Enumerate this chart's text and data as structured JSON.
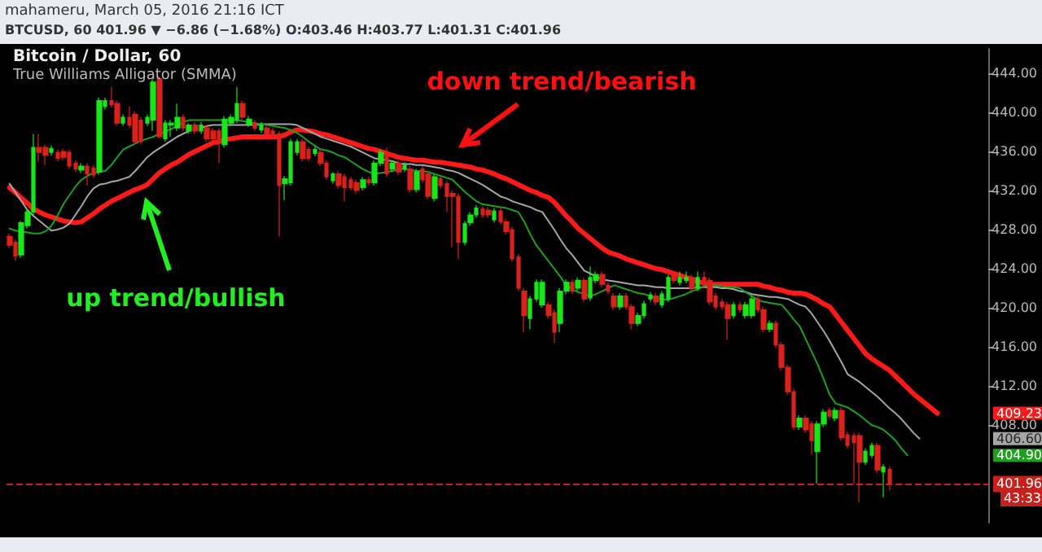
{
  "chart_data": {
    "type": "candlestick",
    "title": "Bitcoin / Dollar, 60",
    "subtitle": "True Williams Alligator (SMMA)",
    "annotations": [
      "mahameru, March 05, 2016 21:16 ICT",
      "BTCUSD, 60 401.96 ▼ −6.86 (−1.68%) O:403.46 H:403.77 L:401.31 C:401.96",
      "down trend/bearish",
      "up trend/bullish",
      "409.23",
      "406.60",
      "404.90",
      "43:33"
    ],
    "categories": [
      null,
      null,
      null,
      null,
      null,
      null,
      null,
      null,
      null,
      null,
      null,
      null,
      null,
      null,
      null,
      null,
      null,
      null,
      null,
      null,
      null,
      null,
      null,
      null,
      null,
      null,
      null,
      null,
      null,
      null,
      null,
      null,
      null,
      null,
      null,
      null,
      null,
      null,
      null,
      null,
      null,
      null,
      null,
      null,
      null,
      null,
      null,
      null,
      null,
      null,
      null,
      null,
      null,
      null,
      null,
      null,
      null,
      null,
      null,
      null,
      null,
      null,
      null,
      null,
      null,
      null,
      null,
      null,
      null,
      null,
      null,
      null,
      null,
      null,
      null,
      null,
      null,
      null,
      null,
      null,
      null,
      null,
      null,
      null,
      null,
      null,
      null,
      null,
      null,
      null,
      null,
      null,
      null,
      null,
      null,
      null,
      null,
      null,
      null,
      null,
      null,
      null,
      null,
      null,
      null,
      null,
      null,
      null,
      null,
      null,
      null,
      null,
      null,
      null,
      null,
      null,
      null,
      null,
      null,
      null,
      null,
      null,
      null,
      null,
      null,
      null,
      null,
      null,
      null,
      null,
      null,
      null,
      null,
      null,
      null,
      null,
      null,
      null,
      null,
      null,
      null,
      null,
      null,
      null,
      null,
      null,
      null,
      null,
      null,
      null,
      null,
      null,
      null,
      null,
      null,
      null,
      null,
      null,
      null,
      null,
      null,
      null,
      null,
      null
    ],
    "colors": [
      "#d9221c",
      "#d9221c",
      "#19e619",
      "#19e619",
      "#19e619",
      "#d9221c",
      "#d9221c",
      "#19e619",
      "#d9221c",
      "#d9221c",
      "#d9221c",
      "#d9221c",
      "#19e619",
      "#d9221c",
      "#d9221c",
      "#19e619",
      "#19e619",
      "#d9221c",
      "#d9221c",
      "#19e619",
      "#d9221c",
      "#d9221c",
      "#d9221c",
      "#19e619",
      "#19e619",
      "#d9221c",
      "#19e619",
      "#19e619",
      "#19e619",
      "#d9221c",
      "#19e619",
      "#d9221c",
      "#19e619",
      "#d9221c",
      "#d9221c",
      "#d9221c",
      "#19e619",
      "#19e619",
      "#19e619",
      "#d9221c",
      "#19e619",
      "#d9221c",
      "#19e619",
      "#d9221c",
      "#d9221c",
      "#d9221c",
      "#19e619",
      "#19e619",
      "#19e619",
      "#d9221c",
      "#d9221c",
      "#19e619",
      "#d9221c",
      "#d9221c",
      "#19e619",
      "#d9221c",
      "#d9221c",
      "#d9221c",
      "#d9221c",
      "#19e619",
      "#d9221c",
      "#19e619",
      "#19e619",
      "#d9221c",
      "#19e619",
      "#d9221c",
      "#19e619",
      "#d9221c",
      "#19e619",
      "#d9221c",
      "#d9221c",
      "#19e619",
      "#d9221c",
      "#d9221c",
      "#d9221c",
      "#d9221c",
      "#19e619",
      "#19e619",
      "#19e619",
      "#d9221c",
      "#d9221c",
      "#19e619",
      "#d9221c",
      "#d9221c",
      "#d9221c",
      "#d9221c",
      "#d9221c",
      "#19e619",
      "#19e619",
      "#19e619",
      "#d9221c",
      "#d9221c",
      "#19e619",
      "#19e619",
      "#d9221c",
      "#19e619",
      "#d9221c",
      "#19e619",
      "#19e619",
      "#d9221c",
      "#d9221c",
      "#d9221c",
      "#19e619",
      "#d9221c",
      "#d9221c",
      "#19e619",
      "#19e619",
      "#19e619",
      "#d9221c",
      "#19e619",
      "#19e619",
      "#d9221c",
      "#19e619",
      "#19e619",
      "#d9221c",
      "#19e619",
      "#d9221c",
      "#d9221c",
      "#d9221c",
      "#d9221c",
      "#d9221c",
      "#19e619",
      "#d9221c",
      "#19e619",
      "#19e619",
      "#d9221c",
      "#d9221c",
      "#19e619",
      "#d9221c",
      "#d9221c",
      "#d9221c",
      "#d9221c",
      "#19e619",
      "#d9221c",
      "#d9221c",
      "#19e619",
      "#19e619",
      "#d9221c",
      "#19e619",
      "#d9221c",
      "#d9221c",
      "#d9221c",
      "#d9221c",
      "#19e619",
      "#19e619",
      "#d9221c",
      "#19e619",
      "#d9221c",
      null,
      null,
      null,
      null,
      null,
      null,
      null,
      null,
      null,
      null,
      null,
      null,
      null,
      null,
      null,
      null
    ],
    "ohlc": [
      [
        427.3,
        427.6,
        426.1,
        426.4
      ],
      [
        426.7,
        427.0,
        424.8,
        425.3
      ],
      [
        425.4,
        428.9,
        425.1,
        428.7
      ],
      [
        428.4,
        430.1,
        428.1,
        429.8
      ],
      [
        429.8,
        437.8,
        429.5,
        436.4
      ],
      [
        436.4,
        437.8,
        435.0,
        435.9
      ],
      [
        436.4,
        436.7,
        434.6,
        435.6
      ],
      [
        435.9,
        436.6,
        435.6,
        436.3
      ],
      [
        435.9,
        436.2,
        435.0,
        435.3
      ],
      [
        436.0,
        436.3,
        435.1,
        435.4
      ],
      [
        435.9,
        436.2,
        434.2,
        434.5
      ],
      [
        434.8,
        435.1,
        433.9,
        434.2
      ],
      [
        434.1,
        434.8,
        433.8,
        434.5
      ],
      [
        434.5,
        434.8,
        432.5,
        433.7
      ],
      [
        434.3,
        434.6,
        433.3,
        433.6
      ],
      [
        433.9,
        441.5,
        433.6,
        441.2
      ],
      [
        440.6,
        441.5,
        440.3,
        441.2
      ],
      [
        441.2,
        442.6,
        440.5,
        440.8
      ],
      [
        440.9,
        441.2,
        438.6,
        438.9
      ],
      [
        438.9,
        439.8,
        438.6,
        439.5
      ],
      [
        439.5,
        440.6,
        438.4,
        438.7
      ],
      [
        439.8,
        440.1,
        436.7,
        437.0
      ],
      [
        439.2,
        439.5,
        436.7,
        437.0
      ],
      [
        438.9,
        439.8,
        438.6,
        439.5
      ],
      [
        439.2,
        443.4,
        438.1,
        443.1
      ],
      [
        443.4,
        443.7,
        437.3,
        437.5
      ],
      [
        437.3,
        439.2,
        437.0,
        438.9
      ],
      [
        438.7,
        439.2,
        437.5,
        438.9
      ],
      [
        438.4,
        440.9,
        438.1,
        439.5
      ],
      [
        439.5,
        439.8,
        438.1,
        438.4
      ],
      [
        438.1,
        438.9,
        437.8,
        438.7
      ],
      [
        438.7,
        439.0,
        437.8,
        438.1
      ],
      [
        438.1,
        439.0,
        437.8,
        438.7
      ],
      [
        438.4,
        438.7,
        437.0,
        437.3
      ],
      [
        438.1,
        438.4,
        437.0,
        437.3
      ],
      [
        438.1,
        438.4,
        434.8,
        437.0
      ],
      [
        436.7,
        439.6,
        436.4,
        439.3
      ],
      [
        438.9,
        439.8,
        438.6,
        439.5
      ],
      [
        439.2,
        442.6,
        438.9,
        440.9
      ],
      [
        440.9,
        441.2,
        439.2,
        439.5
      ],
      [
        438.8,
        439.6,
        438.5,
        439.3
      ],
      [
        438.9,
        439.2,
        438.1,
        438.4
      ],
      [
        438.2,
        439.0,
        437.9,
        438.7
      ],
      [
        438.4,
        438.7,
        437.5,
        437.8
      ],
      [
        438.1,
        438.4,
        437.2,
        437.5
      ],
      [
        437.8,
        438.1,
        427.3,
        432.5
      ],
      [
        432.7,
        433.5,
        431.0,
        433.2
      ],
      [
        432.8,
        437.3,
        432.5,
        437.0
      ],
      [
        435.9,
        437.3,
        435.6,
        437.0
      ],
      [
        437.0,
        437.3,
        435.0,
        435.3
      ],
      [
        436.2,
        436.5,
        435.0,
        435.3
      ],
      [
        435.8,
        436.5,
        435.5,
        436.2
      ],
      [
        435.9,
        436.2,
        434.5,
        434.8
      ],
      [
        434.8,
        435.1,
        433.1,
        433.4
      ],
      [
        433.0,
        433.9,
        432.7,
        433.7
      ],
      [
        433.7,
        434.0,
        432.2,
        432.5
      ],
      [
        433.4,
        433.7,
        430.9,
        432.3
      ],
      [
        433.1,
        433.4,
        432.0,
        432.3
      ],
      [
        432.8,
        433.1,
        431.7,
        432.0
      ],
      [
        432.3,
        433.4,
        432.0,
        433.1
      ],
      [
        433.1,
        433.4,
        432.5,
        432.8
      ],
      [
        432.8,
        435.1,
        432.5,
        434.8
      ],
      [
        434.8,
        436.2,
        434.5,
        435.9
      ],
      [
        435.9,
        436.4,
        433.4,
        433.7
      ],
      [
        434.2,
        435.1,
        433.9,
        434.8
      ],
      [
        434.8,
        435.1,
        433.6,
        433.9
      ],
      [
        434.2,
        434.9,
        433.9,
        434.6
      ],
      [
        434.2,
        434.5,
        431.8,
        432.1
      ],
      [
        432.1,
        434.2,
        431.8,
        433.9
      ],
      [
        434.2,
        434.5,
        432.8,
        433.1
      ],
      [
        433.7,
        434.0,
        431.1,
        431.4
      ],
      [
        431.2,
        433.7,
        430.9,
        433.4
      ],
      [
        433.2,
        433.5,
        432.2,
        432.5
      ],
      [
        432.7,
        433.0,
        429.8,
        431.4
      ],
      [
        431.7,
        432.0,
        426.2,
        431.4
      ],
      [
        431.4,
        431.7,
        425.0,
        426.7
      ],
      [
        426.7,
        428.9,
        426.4,
        428.6
      ],
      [
        428.7,
        429.8,
        428.4,
        429.5
      ],
      [
        429.5,
        430.5,
        429.2,
        430.2
      ],
      [
        430.1,
        430.4,
        429.2,
        429.5
      ],
      [
        430.0,
        430.3,
        429.2,
        429.5
      ],
      [
        429.0,
        430.2,
        428.7,
        429.9
      ],
      [
        429.9,
        430.2,
        428.5,
        428.8
      ],
      [
        428.8,
        429.1,
        427.5,
        427.8
      ],
      [
        428.0,
        428.3,
        424.7,
        425.0
      ],
      [
        425.2,
        425.5,
        421.7,
        422.0
      ],
      [
        421.7,
        422.0,
        417.5,
        419.2
      ],
      [
        418.9,
        421.2,
        417.8,
        420.9
      ],
      [
        420.9,
        422.9,
        420.6,
        422.6
      ],
      [
        420.3,
        422.9,
        420.0,
        422.6
      ],
      [
        420.3,
        420.6,
        418.9,
        419.2
      ],
      [
        419.5,
        419.8,
        416.4,
        417.5
      ],
      [
        418.4,
        422.0,
        417.5,
        421.7
      ],
      [
        421.7,
        422.9,
        421.4,
        422.6
      ],
      [
        422.6,
        422.9,
        421.4,
        421.7
      ],
      [
        422.0,
        423.1,
        421.7,
        422.8
      ],
      [
        422.8,
        423.1,
        420.6,
        420.9
      ],
      [
        421.0,
        424.2,
        420.7,
        423.1
      ],
      [
        422.8,
        423.7,
        422.5,
        423.4
      ],
      [
        423.4,
        423.7,
        422.1,
        422.4
      ],
      [
        422.3,
        422.6,
        421.4,
        421.7
      ],
      [
        421.2,
        421.5,
        419.8,
        420.1
      ],
      [
        420.1,
        421.5,
        419.8,
        421.2
      ],
      [
        421.2,
        421.5,
        419.8,
        420.1
      ],
      [
        420.1,
        420.4,
        417.8,
        418.4
      ],
      [
        418.4,
        419.5,
        418.1,
        419.2
      ],
      [
        419.2,
        420.7,
        418.9,
        420.4
      ],
      [
        420.9,
        421.6,
        420.6,
        421.3
      ],
      [
        421.2,
        421.5,
        420.3,
        420.6
      ],
      [
        420.3,
        421.7,
        420.0,
        421.4
      ],
      [
        420.9,
        423.4,
        420.6,
        423.1
      ],
      [
        423.4,
        423.7,
        422.5,
        422.8
      ],
      [
        422.6,
        423.7,
        422.3,
        423.1
      ],
      [
        422.8,
        423.7,
        422.5,
        423.1
      ],
      [
        423.1,
        423.4,
        421.7,
        422.0
      ],
      [
        422.0,
        423.7,
        421.7,
        423.1
      ],
      [
        423.1,
        423.7,
        422.1,
        422.4
      ],
      [
        422.8,
        423.1,
        420.3,
        420.6
      ],
      [
        421.2,
        421.5,
        419.8,
        420.1
      ],
      [
        420.6,
        420.9,
        419.8,
        420.1
      ],
      [
        420.3,
        420.6,
        416.7,
        418.9
      ],
      [
        419.2,
        420.6,
        418.9,
        420.3
      ],
      [
        420.3,
        420.6,
        419.5,
        419.8
      ],
      [
        419.2,
        420.6,
        418.9,
        420.3
      ],
      [
        419.2,
        421.2,
        418.9,
        420.9
      ],
      [
        420.9,
        421.2,
        419.5,
        419.8
      ],
      [
        419.8,
        420.1,
        417.5,
        417.8
      ],
      [
        417.8,
        418.7,
        417.5,
        418.4
      ],
      [
        418.4,
        418.7,
        415.9,
        416.2
      ],
      [
        416.2,
        416.5,
        413.6,
        413.9
      ],
      [
        413.9,
        414.2,
        411.1,
        411.4
      ],
      [
        411.4,
        411.7,
        407.5,
        407.8
      ],
      [
        407.8,
        409.0,
        407.5,
        408.7
      ],
      [
        408.7,
        409.0,
        407.2,
        407.5
      ],
      [
        408.1,
        408.4,
        405.0,
        406.4
      ],
      [
        405.3,
        408.4,
        402.0,
        408.1
      ],
      [
        408.1,
        409.6,
        407.8,
        409.3
      ],
      [
        409.5,
        409.8,
        408.6,
        408.9
      ],
      [
        408.7,
        409.8,
        408.4,
        409.5
      ],
      [
        409.5,
        409.8,
        406.4,
        406.7
      ],
      [
        407.0,
        407.3,
        405.6,
        405.9
      ],
      [
        406.9,
        407.2,
        402.0,
        406.2
      ],
      [
        406.9,
        407.2,
        400.1,
        404.2
      ],
      [
        404.2,
        405.6,
        403.9,
        405.3
      ],
      [
        404.9,
        406.2,
        404.6,
        405.9
      ],
      [
        405.9,
        406.2,
        403.1,
        403.4
      ],
      [
        403.2,
        404.0,
        400.6,
        403.7
      ],
      [
        403.46,
        403.77,
        401.31,
        401.96
      ],
      null,
      null,
      null,
      null,
      null,
      null,
      null,
      null,
      null,
      null,
      null,
      null,
      null,
      null,
      null,
      null
    ],
    "series": [
      {
        "type": "line",
        "color": "#ff1a1a",
        "values": [
          432.3,
          431.8,
          431.2,
          430.7,
          430.1,
          429.8,
          429.5,
          429.3,
          429.1,
          428.9,
          428.8,
          428.7,
          428.8,
          429.2,
          429.6,
          430.1,
          430.5,
          430.9,
          431.2,
          431.5,
          431.8,
          432.1,
          432.3,
          432.6,
          433.2,
          433.8,
          434.2,
          434.6,
          434.9,
          435.3,
          435.7,
          436.0,
          436.3,
          436.6,
          436.9,
          437.0,
          437.2,
          437.3,
          437.4,
          437.5,
          437.5,
          437.5,
          437.5,
          437.5,
          437.5,
          437.5,
          437.7,
          438.0,
          438.2,
          438.2,
          438.1,
          438.0,
          437.8,
          437.7,
          437.5,
          437.3,
          437.1,
          436.9,
          436.7,
          436.5,
          436.3,
          436.2,
          436.0,
          435.8,
          435.6,
          435.4,
          435.3,
          435.2,
          435.1,
          435.1,
          435.0,
          434.9,
          434.9,
          434.8,
          434.7,
          434.6,
          434.5,
          434.4,
          434.2,
          434.1,
          433.9,
          433.7,
          433.4,
          433.2,
          432.9,
          432.6,
          432.3,
          432.0,
          431.8,
          431.5,
          431.3,
          430.8,
          430.1,
          429.4,
          428.8,
          428.1,
          427.6,
          427.1,
          426.6,
          426.1,
          425.7,
          425.5,
          425.3,
          425.0,
          424.8,
          424.6,
          424.4,
          424.2,
          424.0,
          423.9,
          423.7,
          423.5,
          423.3,
          423.1,
          422.9,
          422.7,
          422.5,
          422.4,
          422.4,
          422.4,
          422.4,
          422.4,
          422.4,
          422.4,
          422.4,
          422.4,
          422.2,
          422.1,
          421.9,
          421.8,
          421.6,
          421.5,
          421.5,
          421.4,
          421.1,
          420.8,
          420.4,
          420.1,
          419.3,
          418.5,
          417.7,
          416.9,
          416.1,
          415.3,
          414.8,
          414.4,
          414.0,
          413.6,
          413.0,
          412.4,
          411.8,
          411.2,
          410.7,
          410.2,
          409.7,
          409.2,
          null,
          null,
          null,
          null,
          null,
          null,
          null,
          null
        ]
      },
      {
        "type": "line",
        "color": "#a6a6a6",
        "values": [
          432.7,
          431.8,
          430.9,
          430.0,
          429.4,
          428.9,
          428.4,
          427.9,
          428.0,
          428.2,
          428.6,
          429.5,
          430.4,
          431.4,
          432.2,
          432.6,
          432.7,
          432.9,
          433.0,
          433.2,
          433.4,
          434.0,
          434.7,
          435.4,
          435.9,
          436.3,
          436.7,
          437.1,
          437.5,
          437.8,
          438.1,
          null,
          438.4,
          438.6,
          438.7,
          438.7,
          438.7,
          438.7,
          438.7,
          438.7,
          438.7,
          438.7,
          438.8,
          438.8,
          438.8,
          438.8,
          438.8,
          438.8,
          438.7,
          438.4,
          438.1,
          437.8,
          437.5,
          437.3,
          437.1,
          436.9,
          436.7,
          436.5,
          436.2,
          435.9,
          435.6,
          435.3,
          435.2,
          435.1,
          435.0,
          434.8,
          434.7,
          434.7,
          434.6,
          434.6,
          434.5,
          434.4,
          434.3,
          434.1,
          434.0,
          433.8,
          433.5,
          433.2,
          432.9,
          432.6,
          432.2,
          431.8,
          431.4,
          431.2,
          430.9,
          430.7,
          430.5,
          430.3,
          430.0,
          429.8,
          428.9,
          428.0,
          427.0,
          426.1,
          425.4,
          424.6,
          423.8,
          423.5,
          423.2,
          422.9,
          422.8,
          422.7,
          422.6,
          422.5,
          422.4,
          422.3,
          422.3,
          422.2,
          422.1,
          422.1,
          422.0,
          422.0,
          422.0,
          422.0,
          422.0,
          422.1,
          422.1,
          422.1,
          422.1,
          422.0,
          422.0,
          421.9,
          421.7,
          421.6,
          421.4,
          421.3,
          421.2,
          421.1,
          421.1,
          421.0,
          420.9,
          420.6,
          420.3,
          420.1,
          419.4,
          418.5,
          417.6,
          416.6,
          415.5,
          414.4,
          413.2,
          412.8,
          412.4,
          411.9,
          411.4,
          410.9,
          410.3,
          409.7,
          409.2,
          408.6,
          407.9,
          407.2,
          406.6,
          null,
          null,
          null,
          null,
          null,
          null,
          null,
          null,
          null,
          null,
          null
        ]
      },
      {
        "type": "line",
        "color": "#1f9e1f",
        "values": [
          428.1,
          427.9,
          427.8,
          427.7,
          427.6,
          427.6,
          427.8,
          428.4,
          429.4,
          430.6,
          431.5,
          432.4,
          433.1,
          433.5,
          433.8,
          433.9,
          434.0,
          434.6,
          435.4,
          436.2,
          436.5,
          436.8,
          437.1,
          437.3,
          437.5,
          437.8,
          438.0,
          438.3,
          438.6,
          439.0,
          439.2,
          439.2,
          439.2,
          439.2,
          439.2,
          439.2,
          439.2,
          439.2,
          439.2,
          439.1,
          439.0,
          438.9,
          438.8,
          438.7,
          438.6,
          438.5,
          438.4,
          438.2,
          437.9,
          437.5,
          437.0,
          436.6,
          436.2,
          436.1,
          435.9,
          435.6,
          435.4,
          435.0,
          434.6,
          434.2,
          433.9,
          433.7,
          433.8,
          433.9,
          434.0,
          434.2,
          434.2,
          434.1,
          434.0,
          434.0,
          433.9,
          433.7,
          433.5,
          433.3,
          433.1,
          432.5,
          431.9,
          431.4,
          430.9,
          430.6,
          430.5,
          430.4,
          430.3,
          430.2,
          430.0,
          429.8,
          428.8,
          427.5,
          426.4,
          425.6,
          424.8,
          424.0,
          423.2,
          422.3,
          421.9,
          421.6,
          421.4,
          421.2,
          421.4,
          421.7,
          422.0,
          422.3,
          422.1,
          421.9,
          421.7,
          421.5,
          421.4,
          421.2,
          421.0,
          420.9,
          420.8,
          421.0,
          421.2,
          421.4,
          421.7,
          421.9,
          422.2,
          422.4,
          422.3,
          422.2,
          422.1,
          422.1,
          422.0,
          421.6,
          421.2,
          420.8,
          420.6,
          420.5,
          420.4,
          420.3,
          419.6,
          418.8,
          418.1,
          416.8,
          415.5,
          414.2,
          412.7,
          411.1,
          410.2,
          410.0,
          409.8,
          409.4,
          409.0,
          408.5,
          408.0,
          407.8,
          407.5,
          407.0,
          406.4,
          405.6,
          404.9,
          null,
          null,
          null,
          null,
          null,
          null,
          null,
          null,
          null,
          null,
          null,
          null,
          null
        ]
      }
    ],
    "ref_lines": [
      {
        "axis": "y",
        "value": 401.96,
        "label": "401.96",
        "color": "#c8201c",
        "line_style": "dashed"
      }
    ],
    "ylim": [
      398,
      446.5
    ],
    "yticks": [
      {
        "value": 408,
        "label": "408.00"
      },
      {
        "value": 412,
        "label": "412.00"
      },
      {
        "value": 416,
        "label": "416.00"
      },
      {
        "value": 420,
        "label": "420.00"
      },
      {
        "value": 424,
        "label": "424.00"
      },
      {
        "value": 428,
        "label": "428.00"
      },
      {
        "value": 432,
        "label": "432.00"
      },
      {
        "value": 436,
        "label": "436.00"
      },
      {
        "value": 440,
        "label": "440.00"
      },
      {
        "value": 444,
        "label": "444.00"
      }
    ],
    "tick_labels": "y",
    "grid": false,
    "line_style": "solid"
  }
}
